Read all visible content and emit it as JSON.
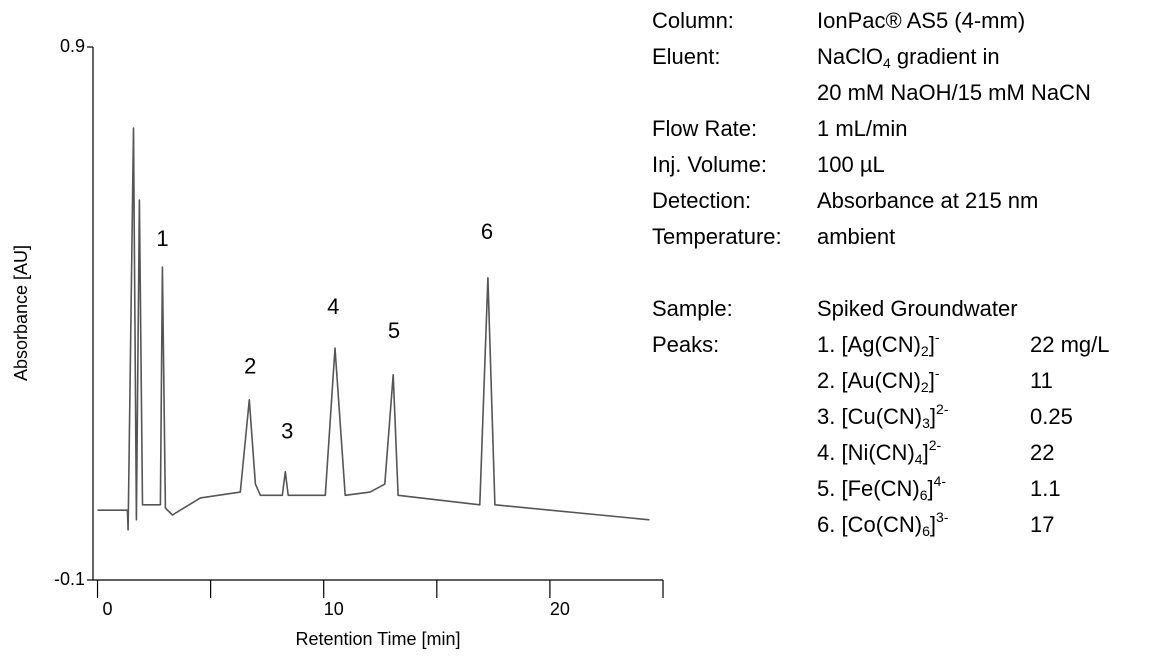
{
  "chart_data": {
    "type": "line",
    "xlabel": "Retention Time [min]",
    "ylabel": "Absorbance [AU]",
    "xlim": [
      -0.2,
      25
    ],
    "xticks": [
      0,
      10,
      20
    ],
    "xminorticks": [
      5,
      15,
      25
    ],
    "ylim": [
      -0.1,
      0.9
    ],
    "yticks": [
      -0.1,
      0.9
    ],
    "color": "#555555",
    "x": [
      0,
      1.32,
      1.35,
      1.59,
      1.72,
      1.85,
      1.99,
      2.78,
      2.87,
      3.0,
      3.31,
      4.55,
      6.31,
      6.71,
      6.98,
      7.2,
      8.17,
      8.3,
      8.43,
      10.07,
      10.5,
      10.95,
      12.05,
      12.7,
      13.07,
      13.29,
      16.9,
      17.26,
      17.57,
      24.4
    ],
    "values": [
      0.031,
      0.031,
      -0.006,
      0.748,
      0.013,
      0.613,
      0.041,
      0.041,
      0.487,
      0.035,
      0.022,
      0.054,
      0.065,
      0.238,
      0.08,
      0.059,
      0.059,
      0.103,
      0.059,
      0.059,
      0.335,
      0.059,
      0.065,
      0.08,
      0.285,
      0.059,
      0.041,
      0.467,
      0.041,
      0.013
    ],
    "annotations": [
      {
        "text": "1",
        "x": 2.87,
        "y": 0.538
      },
      {
        "text": "2",
        "x": 6.75,
        "y": 0.298
      },
      {
        "text": "3",
        "x": 8.39,
        "y": 0.176
      },
      {
        "text": "4",
        "x": 10.42,
        "y": 0.41
      },
      {
        "text": "5",
        "x": 13.11,
        "y": 0.365
      },
      {
        "text": "6",
        "x": 17.22,
        "y": 0.551
      }
    ]
  },
  "method": {
    "conditions": [
      {
        "label": "Column:",
        "value": [
          {
            "text": "IonPac® AS5 (4-mm)"
          }
        ]
      },
      {
        "label": "Eluent:",
        "value": [
          {
            "text": "NaClO"
          },
          {
            "text": "4",
            "style": "sub"
          },
          {
            "text": " gradient  in"
          }
        ]
      },
      {
        "value": [
          {
            "text": "20 mM NaOH/15 mM NaCN"
          }
        ]
      },
      {
        "label": "Flow Rate:",
        "value": [
          {
            "text": "1 mL/min"
          }
        ]
      },
      {
        "label": "Inj. Volume:",
        "value": [
          {
            "text": "100 µL"
          }
        ]
      },
      {
        "label": "Detection:",
        "value": [
          {
            "text": "Absorbance at 215 nm"
          }
        ]
      },
      {
        "label": "Temperature:",
        "value": [
          {
            "text": "ambient"
          }
        ]
      }
    ],
    "sample": {
      "label": "Sample:",
      "value": "Spiked Groundwater"
    },
    "peaks": {
      "label": "Peaks:",
      "items": [
        {
          "name": [
            {
              "text": "1. [Ag(CN)"
            },
            {
              "text": "2",
              "style": "sub"
            },
            {
              "text": "]"
            },
            {
              "text": "-",
              "style": "sup"
            }
          ],
          "amount": "22 mg/L"
        },
        {
          "name": [
            {
              "text": "2. [Au(CN)"
            },
            {
              "text": "2",
              "style": "sub"
            },
            {
              "text": "]"
            },
            {
              "text": "-",
              "style": "sup"
            }
          ],
          "amount": "11"
        },
        {
          "name": [
            {
              "text": "3. [Cu(CN)"
            },
            {
              "text": "3",
              "style": "sub"
            },
            {
              "text": "]"
            },
            {
              "text": "2-",
              "style": "sup"
            }
          ],
          "amount": "0.25"
        },
        {
          "name": [
            {
              "text": "4. [Ni(CN)"
            },
            {
              "text": "4",
              "style": "sub"
            },
            {
              "text": "]"
            },
            {
              "text": "2-",
              "style": "sup"
            }
          ],
          "amount": "22"
        },
        {
          "name": [
            {
              "text": "5. [Fe(CN)"
            },
            {
              "text": "6",
              "style": "sub"
            },
            {
              "text": "]"
            },
            {
              "text": "4-",
              "style": "sup"
            }
          ],
          "amount": "1.1"
        },
        {
          "name": [
            {
              "text": "6. [Co(CN)"
            },
            {
              "text": "6",
              "style": "sub"
            },
            {
              "text": "]"
            },
            {
              "text": "3-",
              "style": "sup"
            }
          ],
          "amount": "17"
        }
      ]
    }
  }
}
